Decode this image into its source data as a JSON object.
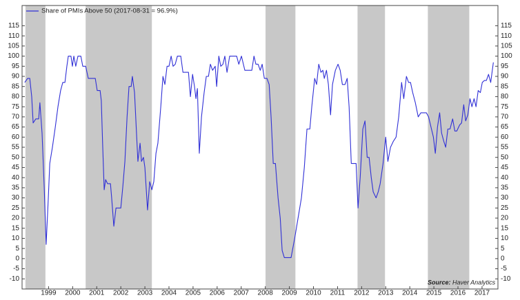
{
  "chart_data": {
    "type": "line",
    "legend": "Share of PMIs Above 50 (2017-08-31 = 96.9%)",
    "legend_position": "top-left",
    "source_label": "Source:",
    "source": "Haver Analytics",
    "xlim": [
      1997.9,
      2017.66
    ],
    "xticks": [
      1999,
      2000,
      2001,
      2002,
      2003,
      2004,
      2005,
      2006,
      2007,
      2008,
      2009,
      2010,
      2011,
      2012,
      2013,
      2014,
      2015,
      2016,
      2017
    ],
    "ylim": [
      -15,
      125
    ],
    "yticks": [
      -10,
      -5,
      0,
      5,
      10,
      15,
      20,
      25,
      30,
      35,
      40,
      45,
      50,
      55,
      60,
      65,
      70,
      75,
      80,
      85,
      90,
      95,
      100,
      105,
      110,
      115
    ],
    "shaded_ranges": [
      [
        1998.04,
        1998.87
      ],
      [
        2000.54,
        2003.29
      ],
      [
        2008.01,
        2009.25
      ],
      [
        2011.83,
        2012.97
      ],
      [
        2014.75,
        2016.47
      ]
    ],
    "shade_color": "#c8c8c8",
    "series": [
      {
        "name": "Share of PMIs Above 50 (2017-08-31 = 96.9%)",
        "color": "#2f2fd6",
        "x": [
          1998.01,
          1998.13,
          1998.22,
          1998.3,
          1998.36,
          1998.47,
          1998.59,
          1998.64,
          1998.73,
          1998.82,
          1998.9,
          1998.99,
          1999.05,
          1999.16,
          1999.28,
          1999.39,
          1999.5,
          1999.59,
          1999.68,
          1999.76,
          1999.82,
          1999.93,
          1999.99,
          2000.05,
          2000.13,
          2000.22,
          2000.34,
          2000.42,
          2000.54,
          2000.65,
          2000.79,
          2000.94,
          2001.02,
          2001.14,
          2001.19,
          2001.25,
          2001.31,
          2001.37,
          2001.45,
          2001.57,
          2001.62,
          2001.71,
          2001.8,
          2001.91,
          2002.0,
          2002.08,
          2002.17,
          2002.26,
          2002.34,
          2002.43,
          2002.48,
          2002.57,
          2002.66,
          2002.71,
          2002.8,
          2002.86,
          2002.94,
          2003.0,
          2003.11,
          2003.2,
          2003.29,
          2003.37,
          2003.46,
          2003.54,
          2003.66,
          2003.75,
          2003.83,
          2003.92,
          2004.0,
          2004.09,
          2004.17,
          2004.26,
          2004.35,
          2004.49,
          2004.58,
          2004.72,
          2004.81,
          2004.89,
          2004.98,
          2005.06,
          2005.12,
          2005.18,
          2005.26,
          2005.35,
          2005.46,
          2005.55,
          2005.64,
          2005.72,
          2005.81,
          2005.92,
          2005.98,
          2006.07,
          2006.15,
          2006.24,
          2006.32,
          2006.41,
          2006.52,
          2006.67,
          2006.81,
          2006.9,
          2007.01,
          2007.15,
          2007.3,
          2007.44,
          2007.53,
          2007.61,
          2007.7,
          2007.79,
          2007.87,
          2007.96,
          2008.07,
          2008.16,
          2008.24,
          2008.33,
          2008.42,
          2008.53,
          2008.62,
          2008.7,
          2008.79,
          2008.9,
          2009.07,
          2009.22,
          2009.36,
          2009.5,
          2009.62,
          2009.73,
          2009.85,
          2009.93,
          2010.05,
          2010.13,
          2010.22,
          2010.31,
          2010.39,
          2010.45,
          2010.54,
          2010.62,
          2010.71,
          2010.79,
          2010.91,
          2011.02,
          2011.11,
          2011.2,
          2011.31,
          2011.4,
          2011.48,
          2011.57,
          2011.68,
          2011.77,
          2011.85,
          2011.94,
          2012.05,
          2012.14,
          2012.23,
          2012.31,
          2012.4,
          2012.48,
          2012.6,
          2012.69,
          2012.77,
          2012.89,
          2013.0,
          2013.09,
          2013.2,
          2013.32,
          2013.43,
          2013.54,
          2013.66,
          2013.75,
          2013.86,
          2013.95,
          2014.03,
          2014.12,
          2014.23,
          2014.35,
          2014.46,
          2014.58,
          2014.69,
          2014.78,
          2014.86,
          2014.98,
          2015.06,
          2015.15,
          2015.24,
          2015.32,
          2015.41,
          2015.49,
          2015.58,
          2015.67,
          2015.78,
          2015.87,
          2015.95,
          2016.07,
          2016.15,
          2016.24,
          2016.32,
          2016.41,
          2016.5,
          2016.58,
          2016.67,
          2016.75,
          2016.84,
          2016.93,
          2017.01,
          2017.1,
          2017.18,
          2017.27,
          2017.36,
          2017.47
        ],
        "values": [
          87,
          89,
          89,
          80,
          67,
          69,
          69,
          77,
          62,
          35,
          7,
          30,
          47,
          55,
          65,
          75,
          83,
          87,
          87,
          95,
          100,
          100,
          95,
          100,
          95,
          100,
          100,
          95,
          95,
          89,
          89,
          89,
          83,
          83,
          78,
          55,
          34,
          39,
          37,
          37,
          30,
          16,
          25,
          25,
          25,
          35,
          48,
          70,
          85,
          85,
          90,
          82,
          60,
          48,
          57,
          48,
          50,
          45,
          24,
          38,
          34,
          38,
          52,
          57,
          75,
          90,
          86,
          95,
          95,
          100,
          95,
          96,
          100,
          100,
          92,
          92,
          92,
          80,
          91,
          85,
          79,
          84,
          52,
          70,
          82,
          90,
          90,
          96,
          93,
          95,
          85,
          100,
          95,
          96,
          100,
          92,
          100,
          100,
          100,
          96,
          100,
          93,
          93,
          93,
          100,
          96,
          96,
          93,
          96,
          89,
          89,
          86,
          70,
          47,
          47,
          30,
          20,
          4,
          0.5,
          0.5,
          0.5,
          10,
          20,
          30,
          45,
          64,
          64,
          75,
          89,
          86,
          96,
          92,
          93,
          89,
          93,
          86,
          71,
          86,
          93,
          96,
          93,
          86,
          86,
          89,
          75,
          47,
          47,
          47,
          25,
          40,
          64,
          68,
          50,
          50,
          40,
          33,
          30,
          33,
          37,
          47,
          60,
          48,
          55,
          58,
          60,
          70,
          87,
          79,
          90,
          87,
          87,
          82,
          77,
          70,
          72,
          72,
          72,
          70,
          66,
          60,
          52,
          65,
          72,
          62,
          58,
          55,
          64,
          64,
          69,
          63,
          63,
          66,
          67,
          76,
          68,
          71,
          79,
          75,
          79,
          75,
          83,
          82,
          87,
          88,
          88,
          91,
          87,
          96.9
        ]
      }
    ]
  }
}
